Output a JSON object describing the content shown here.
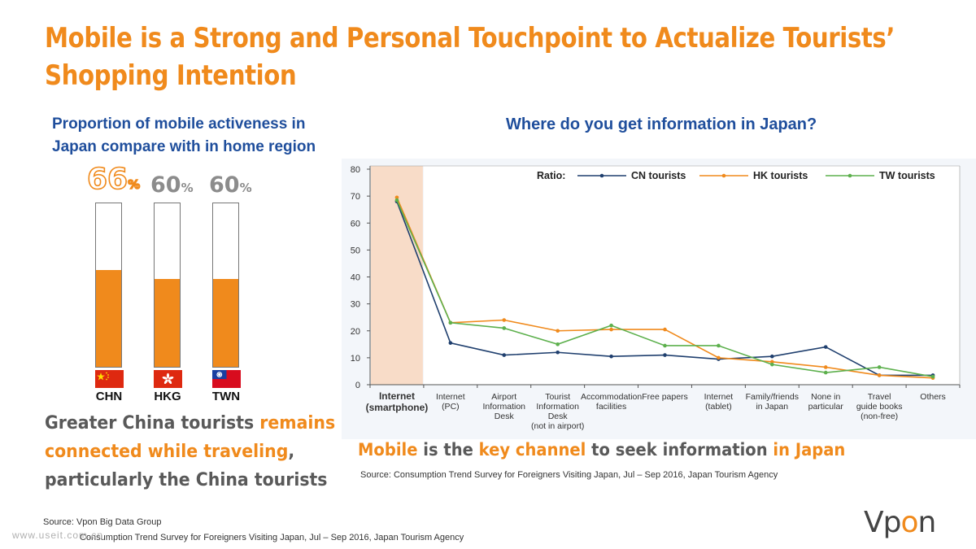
{
  "title": {
    "line1": "Mobile is a Strong and Personal Touchpoint to Actualize Tourists’",
    "line2": "Shopping Intention"
  },
  "left": {
    "subtitle_line1": "Proportion of mobile activeness in",
    "subtitle_line2": "Japan compare with in home region",
    "bars": [
      {
        "country": "CHN",
        "value": 66,
        "label": "66",
        "unit": "%",
        "highlight": true,
        "flag": "china-flag"
      },
      {
        "country": "HKG",
        "value": 60,
        "label": "60",
        "unit": "%",
        "highlight": false,
        "flag": "hong-kong-flag"
      },
      {
        "country": "TWN",
        "value": 60,
        "label": "60",
        "unit": "%",
        "highlight": false,
        "flag": "taiwan-flag"
      }
    ],
    "caption": {
      "p1": "Greater China tourists ",
      "p2": "remains",
      "p3": "connected while traveling",
      "p4": ",",
      "p5": "particularly the China tourists"
    }
  },
  "right": {
    "subtitle": "Where do you get information in Japan?",
    "caption": {
      "p1": "Mobile",
      "p2": " is the ",
      "p3": "key channel",
      "p4": " to seek information ",
      "p5": "in Japan"
    },
    "source": "Source:  Consumption Trend Survey for Foreigners Visiting Japan, Jul – Sep 2016, Japan Tourism Agency"
  },
  "chart_data": {
    "type": "line",
    "legend_title": "Ratio:",
    "legend_position": "top-right",
    "categories": [
      [
        "Internet",
        "(smartphone)"
      ],
      [
        "Internet",
        "(PC)"
      ],
      [
        "Airport",
        "Information",
        "Desk"
      ],
      [
        "Tourist",
        "Information",
        "Desk",
        "(not in airport)"
      ],
      [
        "Accommodation",
        "facilities"
      ],
      [
        "Free papers"
      ],
      [
        "Internet",
        "(tablet)"
      ],
      [
        "Family/friends",
        "in Japan"
      ],
      [
        "None in",
        "particular"
      ],
      [
        "Travel",
        "guide books",
        "(non-free)"
      ],
      [
        "Others"
      ]
    ],
    "series": [
      {
        "name": "CN tourists",
        "color": "#1f3f6e",
        "values": [
          68,
          15.5,
          11,
          12,
          10.5,
          11,
          9.5,
          10.5,
          14,
          3.5,
          3.5
        ]
      },
      {
        "name": "HK tourists",
        "color": "#f08a1c",
        "values": [
          69.5,
          23,
          24,
          20,
          20.5,
          20.5,
          10,
          8.5,
          6.5,
          3.5,
          2.5
        ]
      },
      {
        "name": "TW tourists",
        "color": "#5db04d",
        "values": [
          68.5,
          23,
          21,
          15,
          22,
          14.5,
          14.5,
          7.5,
          4.5,
          6.5,
          3
        ]
      }
    ],
    "ylim": [
      0,
      80
    ],
    "yticks": [
      0,
      10,
      20,
      30,
      40,
      50,
      60,
      70,
      80
    ],
    "highlight_category": 0,
    "highlight_color": "#f8dcc8"
  },
  "footer": {
    "source1": "Source: Vpon Big Data Group",
    "source2": "Consumption Trend Survey for Foreigners Visiting Japan, Jul – Sep 2016, Japan Tourism Agency",
    "watermark": "www.useit.com.cn",
    "logo_a": "Vp",
    "logo_b": "o",
    "logo_c": "n"
  }
}
